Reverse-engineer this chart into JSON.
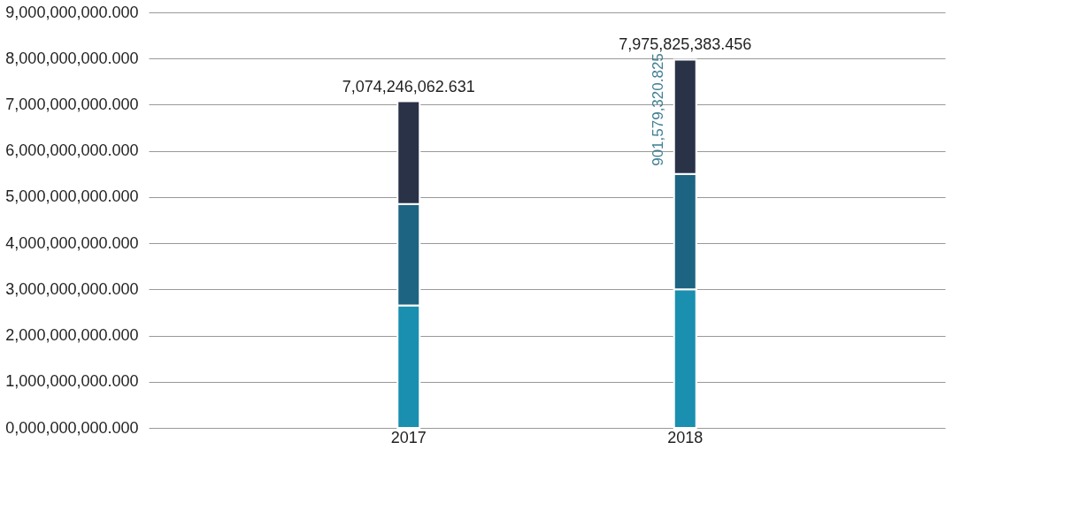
{
  "chart_data": {
    "type": "bar",
    "stacked": true,
    "categories": [
      "2017",
      "2018"
    ],
    "series": [
      {
        "color": "#1a8fb0",
        "values": [
          2650000000,
          3000000000
        ]
      },
      {
        "color": "#1d6482",
        "values": [
          2200000000,
          2500000000
        ]
      },
      {
        "color": "#2a3248",
        "values": [
          2224246062.631,
          2475825383.456
        ]
      }
    ],
    "totals": [
      "7,074,246,062.631",
      "7,975,825,383.456"
    ],
    "annotations": [
      "901,579,320.825"
    ],
    "ylim": [
      0,
      9000000000
    ],
    "yticks": [
      {
        "value": 0,
        "label": "0,000,000,000.000"
      },
      {
        "value": 1000000000,
        "label": "1,000,000,000.000"
      },
      {
        "value": 2000000000,
        "label": "2,000,000,000.000"
      },
      {
        "value": 3000000000,
        "label": "3,000,000,000.000"
      },
      {
        "value": 4000000000,
        "label": "4,000,000,000.000"
      },
      {
        "value": 5000000000,
        "label": "5,000,000,000.000"
      },
      {
        "value": 6000000000,
        "label": "6,000,000,000.000"
      },
      {
        "value": 7000000000,
        "label": "7,000,000,000.000"
      },
      {
        "value": 8000000000,
        "label": "8,000,000,000.000"
      },
      {
        "value": 9000000000,
        "label": "9,000,000,000.000"
      }
    ],
    "grid": "y",
    "legend": false
  }
}
